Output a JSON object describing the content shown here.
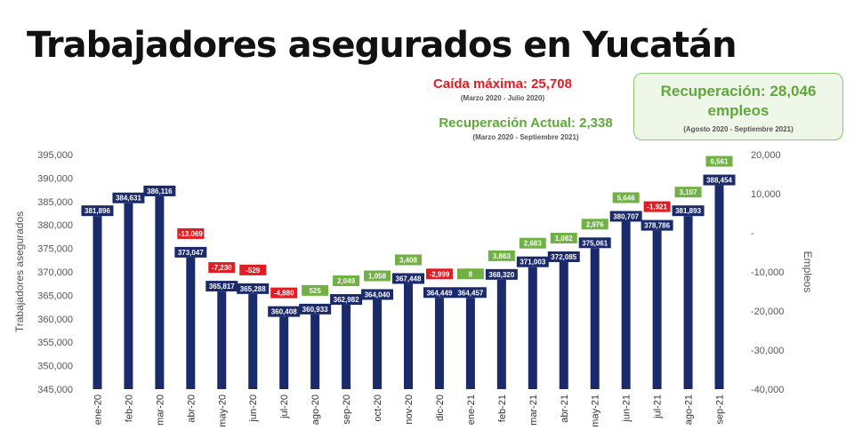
{
  "title": "Trabajadores asegurados en Yucatán",
  "notes": {
    "drop_label": "Caída máxima:  25,708",
    "drop_period": "(Marzo 2020 - Julio 2020)",
    "current_label": "Recuperación Actual: 2,338",
    "current_period": "(Marzo 2020 - Septiembre 2021)",
    "recovery_label": "Recuperación: 28,046 empleos",
    "recovery_period": "(Agosto 2020 - Septiembre 2021)"
  },
  "colors": {
    "bar": "#1b2a6b",
    "positive": "#6fb143",
    "negative": "#e31b23",
    "axis_text": "#555555",
    "title": "#111111"
  },
  "chart_data": {
    "type": "bar",
    "title": "Trabajadores asegurados en Yucatán",
    "ylabel": "Trabajadores asegurados",
    "y2label": "Empleos",
    "ylim": [
      345000,
      395000
    ],
    "y2lim": [
      -40000,
      20000
    ],
    "yticks": [
      "395,000",
      "390,000",
      "385,000",
      "380,000",
      "375,000",
      "370,000",
      "365,000",
      "360,000",
      "355,000",
      "350,000",
      "345,000"
    ],
    "y2ticks": [
      "20,000",
      "10,000",
      "-",
      "-10,000",
      "-20,000",
      "-30,000",
      "-40,000"
    ],
    "grid": false,
    "categories": [
      "ene-20",
      "feb-20",
      "mar-20",
      "abr-20",
      "may-20",
      "jun-20",
      "jul-20",
      "ago-20",
      "sep-20",
      "oct-20",
      "nov-20",
      "dic-20",
      "ene-21",
      "feb-21",
      "mar-21",
      "abr-21",
      "may-21",
      "jun-21",
      "jul-21",
      "ago-21",
      "sep-21"
    ],
    "series": [
      {
        "role": "asegurados",
        "values": [
          381896,
          384631,
          386116,
          373047,
          365817,
          365288,
          360408,
          360933,
          362982,
          364040,
          367448,
          364449,
          364457,
          368320,
          371003,
          372085,
          375061,
          380707,
          378786,
          381893,
          388454
        ],
        "labels": [
          "381,896",
          "384,631",
          "386,116",
          "373,047",
          "365,817",
          "365,288",
          "360,408",
          "360,933",
          "362,982",
          "364,040",
          "367,448",
          "364,449",
          "364,457",
          "368,320",
          "371,003",
          "372,085",
          "375,061",
          "380,707",
          "378,786",
          "381,893",
          "388,454"
        ]
      },
      {
        "role": "variacion_mensual",
        "values": [
          null,
          null,
          null,
          -13069,
          -7230,
          -529,
          -4880,
          525,
          2049,
          1058,
          3408,
          -2999,
          8,
          3863,
          2683,
          1082,
          2976,
          5646,
          -1921,
          3107,
          6561
        ],
        "labels": [
          "",
          "",
          "",
          "-13,069",
          "-7,230",
          "-529",
          "-4,880",
          "525",
          "2,049",
          "1,058",
          "3,408",
          "-2,999",
          "8",
          "3,863",
          "2,683",
          "1,082",
          "2,976",
          "5,646",
          "-1,921",
          "3,107",
          "6,561"
        ]
      }
    ]
  }
}
